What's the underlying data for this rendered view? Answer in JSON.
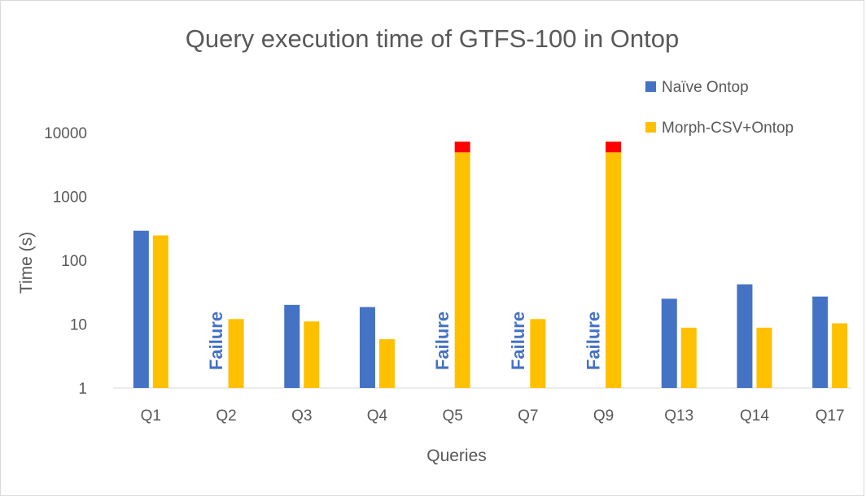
{
  "chart_data": {
    "type": "bar",
    "title": "Query execution time of GTFS-100 in Ontop",
    "xlabel": "Queries",
    "ylabel": "Time (s)",
    "y_scale": "log",
    "ylim": [
      1,
      10000
    ],
    "y_ticks": [
      "1",
      "10",
      "100",
      "1000",
      "10000"
    ],
    "grid": false,
    "legend_position": "top-right",
    "categories": [
      "Q1",
      "Q2",
      "Q3",
      "Q4",
      "Q5",
      "Q7",
      "Q9",
      "Q13",
      "Q14",
      "Q17"
    ],
    "series": [
      {
        "name": "Naïve Ontop",
        "color": "#4472c4",
        "values": [
          290,
          null,
          20,
          18.5,
          null,
          null,
          null,
          25,
          42,
          27
        ],
        "failure_label": "Failure"
      },
      {
        "name": "Morph-CSV+Ontop",
        "color": "#ffc000",
        "values": [
          245,
          12,
          11,
          5.8,
          7200,
          12,
          7200,
          8.8,
          8.8,
          10.3
        ],
        "timeout_marker": {
          "categories": [
            "Q5",
            "Q9"
          ],
          "from": 4900,
          "to": 7200,
          "color": "#ff0000"
        }
      }
    ]
  }
}
